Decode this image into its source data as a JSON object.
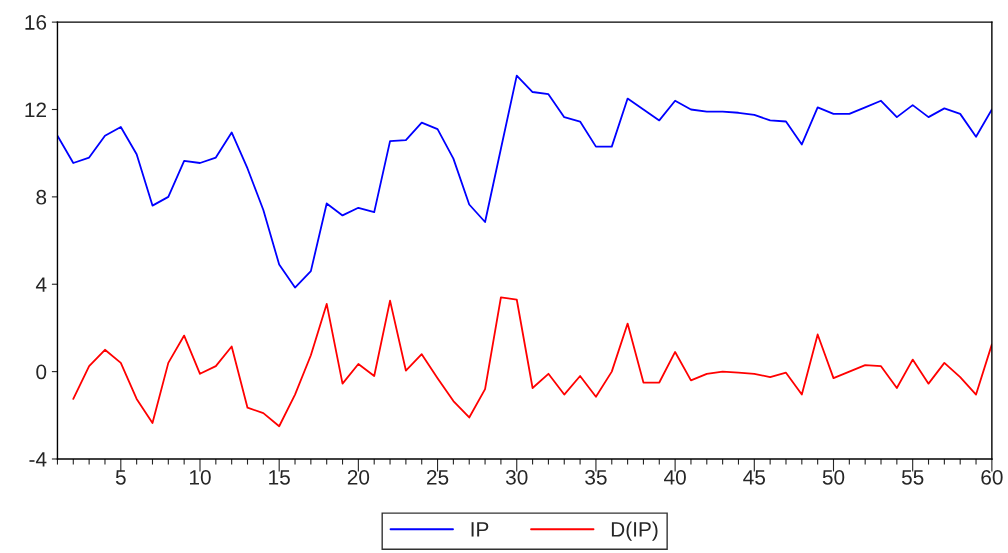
{
  "chart_data": {
    "type": "line",
    "x": [
      1,
      2,
      3,
      4,
      5,
      6,
      7,
      8,
      9,
      10,
      11,
      12,
      13,
      14,
      15,
      16,
      17,
      18,
      19,
      20,
      21,
      22,
      23,
      24,
      25,
      26,
      27,
      28,
      29,
      30,
      31,
      32,
      33,
      34,
      35,
      36,
      37,
      38,
      39,
      40,
      41,
      42,
      43,
      44,
      45,
      46,
      47,
      48,
      49,
      50,
      51,
      52,
      53,
      54,
      55,
      56,
      57,
      58,
      59,
      60
    ],
    "series": [
      {
        "name": "IP",
        "color": "#0000ff",
        "values": [
          10.8,
          9.55,
          9.8,
          10.8,
          11.2,
          9.95,
          7.6,
          8.0,
          9.65,
          9.55,
          9.8,
          10.95,
          9.3,
          7.4,
          4.9,
          3.85,
          4.6,
          7.7,
          7.15,
          7.5,
          7.3,
          10.55,
          10.6,
          11.4,
          11.1,
          9.75,
          7.65,
          6.85,
          10.2,
          13.55,
          12.8,
          12.7,
          11.65,
          11.45,
          10.3,
          10.3,
          12.5,
          12.0,
          11.5,
          12.4,
          12.0,
          11.9,
          11.9,
          11.85,
          11.75,
          11.5,
          11.45,
          10.4,
          12.1,
          11.8,
          11.8,
          12.1,
          12.4,
          11.65,
          12.2,
          11.65,
          12.05,
          11.8,
          10.75,
          12.0
        ]
      },
      {
        "name": "D(IP)",
        "color": "#ff0000",
        "values": [
          null,
          -1.25,
          0.25,
          1.0,
          0.4,
          -1.25,
          -2.35,
          0.4,
          1.65,
          -0.1,
          0.25,
          1.15,
          -1.65,
          -1.9,
          -2.5,
          -1.05,
          0.75,
          3.1,
          -0.55,
          0.35,
          -0.2,
          3.25,
          0.05,
          0.8,
          -0.3,
          -1.35,
          -2.1,
          -0.8,
          3.4,
          3.3,
          -0.75,
          -0.1,
          -1.05,
          -0.2,
          -1.15,
          0.0,
          2.2,
          -0.5,
          -0.5,
          0.9,
          -0.4,
          -0.1,
          0.0,
          -0.05,
          -0.1,
          -0.25,
          -0.05,
          -1.05,
          1.7,
          -0.3,
          0.0,
          0.3,
          0.25,
          -0.75,
          0.55,
          -0.55,
          0.4,
          -0.25,
          -1.05,
          1.25
        ]
      }
    ],
    "xlim": [
      1,
      60
    ],
    "xticks": [
      {
        "value": 1,
        "label": null
      },
      {
        "value": 2,
        "label": null
      },
      {
        "value": 3,
        "label": null
      },
      {
        "value": 4,
        "label": null
      },
      5,
      {
        "value": 6,
        "label": null
      },
      {
        "value": 7,
        "label": null
      },
      {
        "value": 8,
        "label": null
      },
      {
        "value": 9,
        "label": null
      },
      10,
      {
        "value": 11,
        "label": null
      },
      {
        "value": 12,
        "label": null
      },
      {
        "value": 13,
        "label": null
      },
      {
        "value": 14,
        "label": null
      },
      15,
      {
        "value": 16,
        "label": null
      },
      {
        "value": 17,
        "label": null
      },
      {
        "value": 18,
        "label": null
      },
      {
        "value": 19,
        "label": null
      },
      20,
      {
        "value": 21,
        "label": null
      },
      {
        "value": 22,
        "label": null
      },
      {
        "value": 23,
        "label": null
      },
      {
        "value": 24,
        "label": null
      },
      25,
      {
        "value": 26,
        "label": null
      },
      {
        "value": 27,
        "label": null
      },
      {
        "value": 28,
        "label": null
      },
      {
        "value": 29,
        "label": null
      },
      30,
      {
        "value": 31,
        "label": null
      },
      {
        "value": 32,
        "label": null
      },
      {
        "value": 33,
        "label": null
      },
      {
        "value": 34,
        "label": null
      },
      35,
      {
        "value": 36,
        "label": null
      },
      {
        "value": 37,
        "label": null
      },
      {
        "value": 38,
        "label": null
      },
      {
        "value": 39,
        "label": null
      },
      40,
      {
        "value": 41,
        "label": null
      },
      {
        "value": 42,
        "label": null
      },
      {
        "value": 43,
        "label": null
      },
      {
        "value": 44,
        "label": null
      },
      45,
      {
        "value": 46,
        "label": null
      },
      {
        "value": 47,
        "label": null
      },
      {
        "value": 48,
        "label": null
      },
      {
        "value": 49,
        "label": null
      },
      50,
      {
        "value": 51,
        "label": null
      },
      {
        "value": 52,
        "label": null
      },
      {
        "value": 53,
        "label": null
      },
      {
        "value": 54,
        "label": null
      },
      55,
      {
        "value": 56,
        "label": null
      },
      {
        "value": 57,
        "label": null
      },
      {
        "value": 58,
        "label": null
      },
      {
        "value": 59,
        "label": null
      },
      60
    ],
    "ylim": [
      -4,
      16
    ],
    "yticks": [
      -4,
      0,
      4,
      8,
      12,
      16
    ],
    "grid": false,
    "legend": "bottom",
    "marker": "none",
    "line_style": "solid"
  }
}
